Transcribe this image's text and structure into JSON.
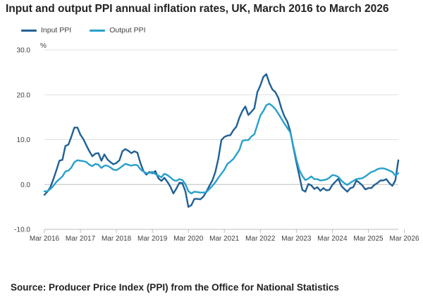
{
  "title": "Input and output PPI annual inflation rates, UK, March 2016 to March 2026",
  "source": "Source: Producer Price Index (PPI) from the Office for National Statistics",
  "colors": {
    "input": "#206095",
    "output": "#27a0cc",
    "grid": "#e0e0e0",
    "axis": "#bdbdbd",
    "text": "#414042"
  },
  "chart_data": {
    "type": "line",
    "title": "Input and output PPI annual inflation rates, UK, March 2016 to March 2026",
    "ylabel": "%",
    "ylim": [
      -10,
      30
    ],
    "yticks": [
      -10,
      0,
      10,
      20,
      30
    ],
    "ytick_labels": [
      "-10.0",
      "0.0",
      "10.0",
      "20.0",
      "30.0"
    ],
    "xticks": [
      "Mar 2016",
      "Mar 2017",
      "Mar 2018",
      "Mar 2019",
      "Mar 2020",
      "Mar 2021",
      "Mar 2022",
      "Mar 2023",
      "Mar 2024",
      "Mar 2025",
      "Mar 2026"
    ],
    "grid": true,
    "legend_position": "top-left",
    "x_start": "Mar 2016",
    "x_frequency": "monthly",
    "series": [
      {
        "name": "Input PPI",
        "color": "#206095",
        "values": [
          -2.3,
          -1.6,
          -0.6,
          1.2,
          3.2,
          5.3,
          5.5,
          8.6,
          8.9,
          10.7,
          12.7,
          12.7,
          11.1,
          10.1,
          8.7,
          7.4,
          6.3,
          6.9,
          7.0,
          5.3,
          6.7,
          5.6,
          5.0,
          4.5,
          4.8,
          5.4,
          7.4,
          7.9,
          7.5,
          7.0,
          7.4,
          7.1,
          4.8,
          3.0,
          2.2,
          2.8,
          2.5,
          3.0,
          1.4,
          0.8,
          1.5,
          0.6,
          -0.5,
          -2.0,
          -0.9,
          0.4,
          0.3,
          -1.5,
          -5.0,
          -4.6,
          -3.2,
          -3.2,
          -3.3,
          -2.7,
          -1.6,
          -0.3,
          0.9,
          2.8,
          5.8,
          9.9,
          10.6,
          10.9,
          11.0,
          12.1,
          12.9,
          14.9,
          16.4,
          17.4,
          15.5,
          16.2,
          17.0,
          20.6,
          22.1,
          24.0,
          24.6,
          22.6,
          21.2,
          20.6,
          19.3,
          17.0,
          15.2,
          14.0,
          11.8,
          8.3,
          5.0,
          1.9,
          -1.2,
          -1.6,
          0.1,
          -0.2,
          -1.0,
          -0.6,
          -1.4,
          -0.8,
          -1.3,
          -1.2,
          -0.1,
          0.6,
          1.3,
          -0.3,
          -1.0,
          -1.6,
          -0.8,
          -0.6,
          0.9,
          0.4,
          -0.2,
          -1.1,
          -0.8,
          -0.8,
          -0.1,
          0.3,
          0.9,
          0.9,
          1.2,
          0.3,
          -0.3,
          0.9,
          5.4
        ]
      },
      {
        "name": "Output PPI",
        "color": "#27a0cc",
        "values": [
          -1.5,
          -1.5,
          -1.0,
          -0.3,
          0.6,
          1.2,
          1.8,
          2.9,
          3.1,
          3.8,
          5.0,
          5.4,
          5.3,
          5.2,
          5.0,
          4.4,
          4.1,
          4.6,
          4.4,
          3.7,
          4.2,
          4.2,
          3.8,
          3.3,
          3.2,
          3.6,
          4.1,
          4.6,
          4.4,
          4.2,
          4.4,
          4.3,
          3.4,
          2.9,
          2.5,
          2.6,
          2.8,
          2.3,
          2.0,
          1.6,
          2.4,
          2.1,
          1.6,
          1.0,
          0.8,
          1.2,
          1.0,
          0.1,
          -1.5,
          -2.0,
          -1.6,
          -1.7,
          -1.8,
          -1.8,
          -1.7,
          -1.0,
          -0.3,
          0.5,
          1.5,
          2.4,
          3.3,
          4.6,
          5.1,
          5.7,
          6.7,
          7.7,
          9.7,
          9.9,
          9.9,
          10.7,
          11.2,
          13.3,
          15.4,
          16.4,
          17.7,
          18.0,
          17.5,
          16.8,
          15.8,
          14.7,
          13.6,
          12.6,
          11.6,
          8.5,
          5.6,
          3.2,
          1.9,
          1.0,
          1.3,
          1.8,
          1.2,
          1.2,
          0.9,
          1.0,
          1.1,
          1.5,
          2.1,
          2.0,
          1.7,
          0.9,
          0.3,
          -0.1,
          0.4,
          0.8,
          1.2,
          1.3,
          1.4,
          1.8,
          2.3,
          2.8,
          3.0,
          3.4,
          3.6,
          3.6,
          3.4,
          3.1,
          2.8,
          2.0,
          2.5
        ]
      }
    ]
  }
}
